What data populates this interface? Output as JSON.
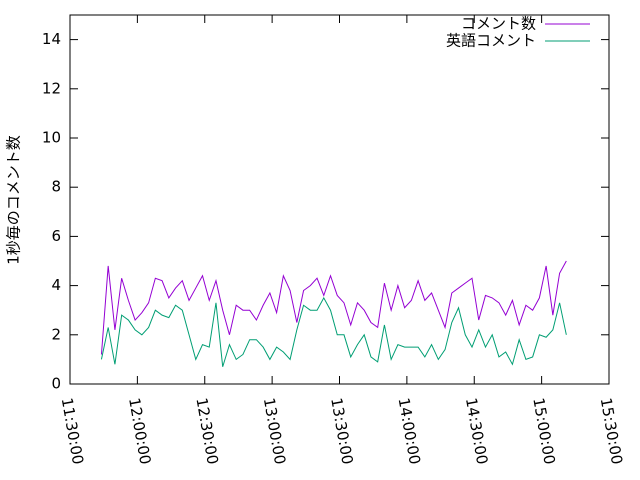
{
  "chart_data": {
    "type": "line",
    "ylabel": "1秒毎のコメント数",
    "x": [
      "11:44:00",
      "11:47:00",
      "11:50:00",
      "11:53:00",
      "11:56:00",
      "11:59:00",
      "12:02:00",
      "12:05:00",
      "12:08:00",
      "12:11:00",
      "12:14:00",
      "12:17:00",
      "12:20:00",
      "12:23:00",
      "12:26:00",
      "12:29:00",
      "12:32:00",
      "12:35:00",
      "12:38:00",
      "12:41:00",
      "12:44:00",
      "12:47:00",
      "12:50:00",
      "12:53:00",
      "12:56:00",
      "12:59:00",
      "13:02:00",
      "13:05:00",
      "13:08:00",
      "13:11:00",
      "13:14:00",
      "13:17:00",
      "13:20:00",
      "13:23:00",
      "13:26:00",
      "13:29:00",
      "13:32:00",
      "13:35:00",
      "13:38:00",
      "13:41:00",
      "13:44:00",
      "13:47:00",
      "13:50:00",
      "13:53:00",
      "13:56:00",
      "13:59:00",
      "14:02:00",
      "14:05:00",
      "14:08:00",
      "14:11:00",
      "14:14:00",
      "14:17:00",
      "14:20:00",
      "14:23:00",
      "14:26:00",
      "14:29:00",
      "14:32:00",
      "14:35:00",
      "14:38:00",
      "14:41:00",
      "14:44:00",
      "14:47:00",
      "14:50:00",
      "14:53:00",
      "14:56:00",
      "14:59:00",
      "15:02:00",
      "15:05:00",
      "15:08:00",
      "15:11:00"
    ],
    "series": [
      {
        "name": "コメント数",
        "color": "#9400d3",
        "values": [
          1.2,
          4.8,
          2.2,
          4.3,
          3.4,
          2.6,
          2.9,
          3.3,
          4.3,
          4.2,
          3.5,
          3.9,
          4.2,
          3.4,
          3.9,
          4.4,
          3.4,
          4.2,
          3.0,
          2.0,
          3.2,
          3.0,
          3.0,
          2.6,
          3.2,
          3.7,
          2.9,
          4.4,
          3.8,
          2.5,
          3.8,
          4.0,
          4.3,
          3.6,
          4.4,
          3.6,
          3.3,
          2.4,
          3.3,
          3.0,
          2.5,
          2.3,
          4.1,
          3.0,
          4.0,
          3.1,
          3.4,
          4.2,
          3.4,
          3.7,
          3.0,
          2.3,
          3.7,
          3.9,
          4.1,
          4.3,
          2.6,
          3.6,
          3.5,
          3.3,
          2.8,
          3.4,
          2.4,
          3.2,
          3.0,
          3.5,
          4.8,
          2.8,
          4.5,
          5.0
        ]
      },
      {
        "name": "英語コメント",
        "color": "#009e73",
        "values": [
          1.0,
          2.3,
          0.8,
          2.8,
          2.6,
          2.2,
          2.0,
          2.3,
          3.0,
          2.8,
          2.7,
          3.2,
          3.0,
          2.0,
          1.0,
          1.6,
          1.5,
          3.3,
          0.7,
          1.6,
          1.0,
          1.2,
          1.8,
          1.8,
          1.5,
          1.0,
          1.5,
          1.3,
          1.0,
          2.2,
          3.2,
          3.0,
          3.0,
          3.5,
          3.0,
          2.0,
          2.0,
          1.1,
          1.6,
          2.0,
          1.1,
          0.9,
          2.4,
          1.0,
          1.6,
          1.5,
          1.5,
          1.5,
          1.1,
          1.6,
          1.0,
          1.4,
          2.5,
          3.1,
          2.0,
          1.5,
          2.2,
          1.5,
          2.0,
          1.1,
          1.3,
          0.8,
          1.8,
          1.0,
          1.1,
          2.0,
          1.9,
          2.2,
          3.3,
          2.0
        ]
      }
    ],
    "xlim": [
      "11:30:00",
      "15:30:00"
    ],
    "xticks": [
      "11:30:00",
      "12:00:00",
      "12:30:00",
      "13:00:00",
      "13:30:00",
      "14:00:00",
      "14:30:00",
      "15:00:00",
      "15:30:00"
    ],
    "ylim": [
      0,
      15
    ],
    "yticks": [
      0,
      2,
      4,
      6,
      8,
      10,
      12,
      14
    ],
    "legend": "top-right"
  }
}
